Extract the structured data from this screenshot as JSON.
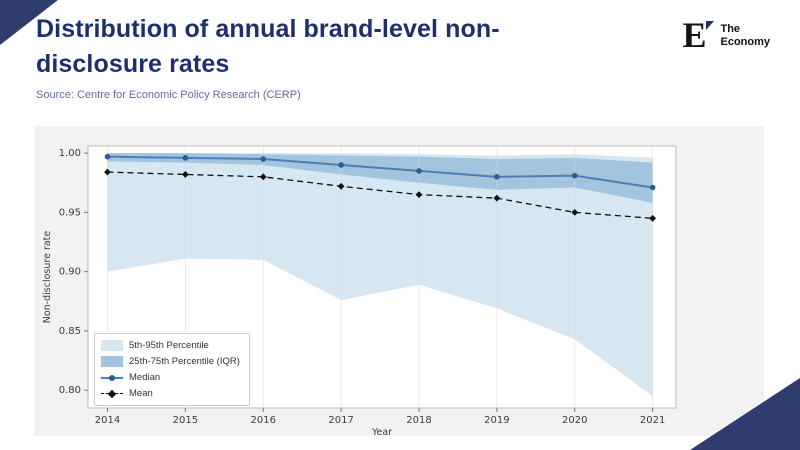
{
  "header": {
    "title": "Distribution of annual brand-level non-disclosure rates",
    "source": "Source: Centre for Economic Policy Research (CERP)"
  },
  "logo": {
    "letter": "E",
    "line1": "The",
    "line2": "Economy"
  },
  "colors": {
    "accent_navy": "#1e2f6d",
    "corner_navy": "#2f3c6e",
    "band_5_95": "#d6e7f1",
    "band_25_75": "#a2c4de",
    "median_line": "#4d7fb5",
    "median_marker": "#2c5d92",
    "mean_line": "#111111",
    "panel_background": "#f2f2f2"
  },
  "chart_data": {
    "type": "line",
    "title": "",
    "xlabel": "Year",
    "ylabel": "Non-disclosure rate",
    "x": [
      2014,
      2015,
      2016,
      2017,
      2018,
      2019,
      2020,
      2021
    ],
    "x_tick_labels": [
      "2014",
      "2015",
      "2016",
      "2017",
      "2018",
      "2019",
      "2020",
      "2021"
    ],
    "y_tick_values": [
      0.8,
      0.85,
      0.9,
      0.95,
      1.0
    ],
    "y_tick_labels": [
      "0.80",
      "0.85",
      "0.90",
      "0.95",
      "1.00"
    ],
    "x_range": [
      2013.75,
      2021.3
    ],
    "y_range": [
      0.785,
      1.006
    ],
    "grid": "vertical",
    "legend_position": "lower left",
    "series": [
      {
        "name": "5th-95th Percentile",
        "type": "band",
        "upper": [
          1.0,
          1.0,
          1.0,
          1.0,
          0.999,
          0.998,
          0.999,
          0.996
        ],
        "lower": [
          0.9,
          0.911,
          0.91,
          0.876,
          0.889,
          0.869,
          0.843,
          0.795
        ],
        "color": "#d6e7f1"
      },
      {
        "name": "25th-75th Percentile (IQR)",
        "type": "band",
        "upper": [
          1.0,
          1.0,
          0.999,
          0.998,
          0.997,
          0.995,
          0.996,
          0.992
        ],
        "lower": [
          0.993,
          0.992,
          0.99,
          0.982,
          0.975,
          0.969,
          0.971,
          0.958
        ],
        "color": "#a2c4de"
      },
      {
        "name": "Median",
        "type": "line",
        "values": [
          0.997,
          0.996,
          0.995,
          0.99,
          0.985,
          0.98,
          0.981,
          0.971
        ],
        "color": "#4d7fb5",
        "marker": "circle",
        "marker_color": "#2c5d92",
        "width": 2
      },
      {
        "name": "Mean",
        "type": "line",
        "values": [
          0.984,
          0.982,
          0.98,
          0.972,
          0.965,
          0.962,
          0.95,
          0.945
        ],
        "color": "#111111",
        "dash": true,
        "marker": "diamond",
        "width": 1.3
      }
    ]
  }
}
